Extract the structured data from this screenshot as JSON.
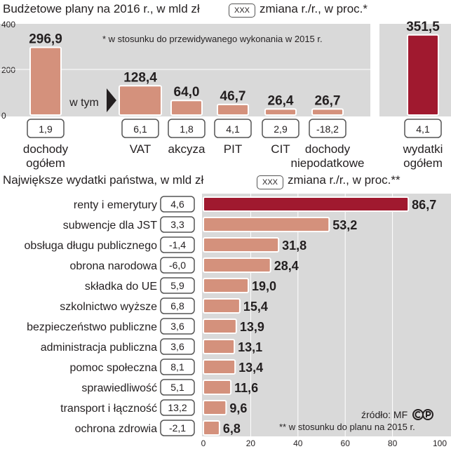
{
  "top": {
    "title": "Budżetowe plany na 2016 r., w mld zł",
    "legend_box": "XXX",
    "legend_text": "zmiana r./r., w proc.*",
    "footnote": "* w stosunku do przewidywanego wykonania w 2015 r.",
    "wtym": "w tym",
    "y_ticks": [
      "400",
      "200",
      "0"
    ]
  },
  "bottom": {
    "title": "Największe wydatki państwa, w mld zł",
    "legend_box": "XXX",
    "legend_text": "zmiana r./r., w proc.**",
    "source": "źródło: MF",
    "footnote": "** w stosunku do planu na 2015 r.",
    "x_ticks": [
      "0",
      "20",
      "40",
      "60",
      "80",
      "100"
    ]
  },
  "colors": {
    "bar": "#d4917c",
    "bar_highlight": "#a0192f",
    "panel": "#d9d9d9"
  },
  "chart_data": [
    {
      "type": "bar",
      "title": "Budżetowe plany na 2016 r., w mld zł",
      "ylim": [
        0,
        400
      ],
      "categories": [
        "dochody ogółem",
        "VAT",
        "akcyza",
        "PIT",
        "CIT",
        "dochody niepodatkowe",
        "wydatki ogółem"
      ],
      "values": [
        296.9,
        128.4,
        64.0,
        46.7,
        26.4,
        26.7,
        351.5
      ],
      "value_labels": [
        "296,9",
        "128,4",
        "64,0",
        "46,7",
        "26,4",
        "26,7",
        "351,5"
      ],
      "changes": [
        "1,9",
        "6,1",
        "1,8",
        "4,1",
        "2,9",
        "-18,2",
        "4,1"
      ],
      "label_lines": [
        [
          "dochody",
          "ogółem"
        ],
        [
          "VAT"
        ],
        [
          "akcyza"
        ],
        [
          "PIT"
        ],
        [
          "CIT"
        ],
        [
          "dochody",
          "niepodatkowe"
        ],
        [
          "wydatki",
          "ogółem"
        ]
      ]
    },
    {
      "type": "bar",
      "orientation": "horizontal",
      "title": "Największe wydatki państwa, w mld zł",
      "xlim": [
        0,
        100
      ],
      "categories": [
        "renty i emerytury",
        "subwencje dla JST",
        "obsługa długu publicznego",
        "obrona narodowa",
        "składka do UE",
        "szkolnictwo wyższe",
        "bezpieczeństwo publiczne",
        "administracja publiczna",
        "pomoc społeczna",
        "sprawiedliwość",
        "transport i łączność",
        "ochrona zdrowia"
      ],
      "values": [
        86.7,
        53.2,
        31.8,
        28.4,
        19.0,
        15.4,
        13.9,
        13.1,
        13.4,
        11.6,
        9.6,
        6.8
      ],
      "value_labels": [
        "86,7",
        "53,2",
        "31,8",
        "28,4",
        "19,0",
        "15,4",
        "13,9",
        "13,1",
        "13,4",
        "11,6",
        "9,6",
        "6,8"
      ],
      "changes": [
        "4,6",
        "3,3",
        "-1,4",
        "-6,0",
        "5,9",
        "6,8",
        "3,6",
        "3,6",
        "8,1",
        "5,1",
        "13,2",
        "-2,1"
      ]
    }
  ]
}
